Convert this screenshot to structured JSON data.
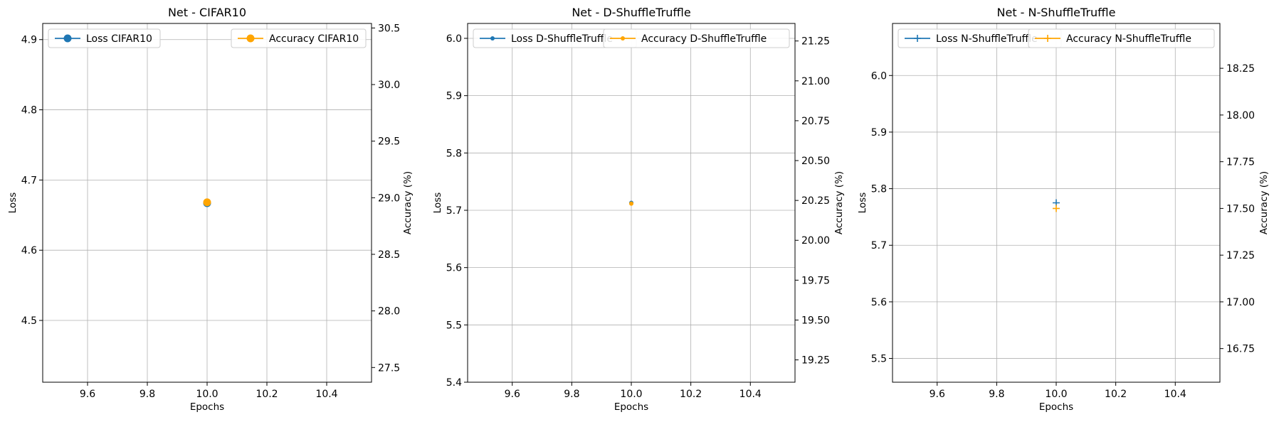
{
  "chart_data": [
    {
      "type": "line",
      "title": "Net - CIFAR10",
      "xlabel": "Epochs",
      "ylabel": "Loss",
      "y2label": "Accuracy (%)",
      "xlim": [
        9.45,
        10.55
      ],
      "ylim": [
        4.412,
        4.923
      ],
      "y2lim": [
        27.37,
        30.54
      ],
      "xticks": [
        "9.6",
        "9.8",
        "10.0",
        "10.2",
        "10.4"
      ],
      "yticks": [
        "4.5",
        "4.6",
        "4.7",
        "4.8",
        "4.9"
      ],
      "y2ticks": [
        "27.5",
        "28.0",
        "28.5",
        "29.0",
        "29.5",
        "30.0",
        "30.5"
      ],
      "marker": "circle",
      "grid": true,
      "series": [
        {
          "name": "Loss CIFAR10",
          "axis": "left",
          "color": "#1f77b4",
          "x": [
            10.0
          ],
          "values": [
            4.667
          ]
        },
        {
          "name": "Accuracy CIFAR10",
          "axis": "right",
          "color": "#ffa500",
          "x": [
            10.0
          ],
          "values": [
            28.96
          ]
        }
      ],
      "legend_left": "upper-left",
      "legend_right": "upper-right"
    },
    {
      "type": "line",
      "title": "Net - D-ShuffleTruffle",
      "xlabel": "Epochs",
      "ylabel": "Loss",
      "y2label": "Accuracy (%)",
      "xlim": [
        9.45,
        10.55
      ],
      "ylim": [
        5.4,
        6.026
      ],
      "y2lim": [
        19.11,
        21.36
      ],
      "xticks": [
        "9.6",
        "9.8",
        "10.0",
        "10.2",
        "10.4"
      ],
      "yticks": [
        "5.4",
        "5.5",
        "5.6",
        "5.7",
        "5.8",
        "5.9",
        "6.0"
      ],
      "y2ticks": [
        "19.25",
        "19.50",
        "19.75",
        "20.00",
        "20.25",
        "20.50",
        "20.75",
        "21.00",
        "21.25"
      ],
      "marker": "point",
      "grid": true,
      "series": [
        {
          "name": "Loss D-ShuffleTruffle",
          "axis": "left",
          "color": "#1f77b4",
          "x": [
            10.0
          ],
          "values": [
            5.713
          ]
        },
        {
          "name": "Accuracy D-ShuffleTruffle",
          "axis": "right",
          "color": "#ffa500",
          "x": [
            10.0
          ],
          "values": [
            20.23
          ]
        }
      ],
      "legend_left": "upper-left",
      "legend_right": "upper-right"
    },
    {
      "type": "line",
      "title": "Net - N-ShuffleTruffle",
      "xlabel": "Epochs",
      "ylabel": "Loss",
      "y2label": "Accuracy (%)",
      "xlim": [
        9.45,
        10.55
      ],
      "ylim": [
        5.458,
        6.092
      ],
      "y2lim": [
        16.57,
        18.49
      ],
      "xticks": [
        "9.6",
        "9.8",
        "10.0",
        "10.2",
        "10.4"
      ],
      "yticks": [
        "5.5",
        "5.6",
        "5.7",
        "5.8",
        "5.9",
        "6.0"
      ],
      "y2ticks": [
        "16.75",
        "17.00",
        "17.25",
        "17.50",
        "17.75",
        "18.00",
        "18.25"
      ],
      "marker": "plus",
      "grid": true,
      "series": [
        {
          "name": "Loss N-ShuffleTruffle",
          "axis": "left",
          "color": "#1f77b4",
          "x": [
            10.0
          ],
          "values": [
            5.775
          ]
        },
        {
          "name": "Accuracy N-ShuffleTruffle",
          "axis": "right",
          "color": "#ffa500",
          "x": [
            10.0
          ],
          "values": [
            17.5
          ]
        }
      ],
      "legend_left": "upper-left",
      "legend_right": "upper-right"
    }
  ]
}
